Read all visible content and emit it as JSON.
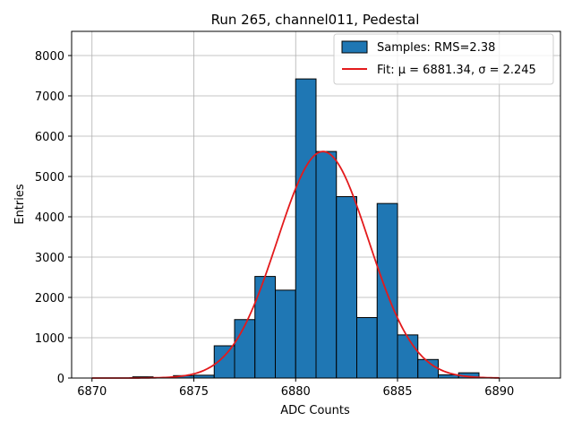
{
  "chart_data": {
    "type": "bar",
    "title": "Run 265, channel011, Pedestal",
    "xlabel": "ADC Counts",
    "ylabel": "Entries",
    "xlim": [
      6869,
      6893
    ],
    "ylim": [
      0,
      8600
    ],
    "xticks": [
      6870,
      6875,
      6880,
      6885,
      6890
    ],
    "yticks": [
      0,
      1000,
      2000,
      3000,
      4000,
      5000,
      6000,
      7000,
      8000
    ],
    "grid": true,
    "legend_position": "top-right",
    "bar_color": "#1f77b4",
    "fit_color": "#e31a1c",
    "histogram": {
      "name": "Samples: RMS=2.38",
      "bin_width": 1,
      "bin_starts": [
        6872,
        6873,
        6874,
        6875,
        6876,
        6877,
        6878,
        6879,
        6880,
        6881,
        6882,
        6883,
        6884,
        6885,
        6886,
        6887,
        6888
      ],
      "values": [
        30,
        10,
        60,
        70,
        800,
        1450,
        2520,
        2180,
        7420,
        5620,
        4500,
        1500,
        4330,
        1070,
        460,
        80,
        130
      ]
    },
    "fit": {
      "name": "Fit: μ = 6881.34, σ = 2.245",
      "mu": 6881.34,
      "sigma": 2.245,
      "amplitude": 5620,
      "x_range": [
        6870,
        6890
      ]
    }
  }
}
